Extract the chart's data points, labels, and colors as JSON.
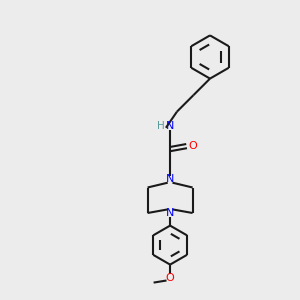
{
  "bg_color": "#ececec",
  "bond_color": "#1a1a1a",
  "N_color": "#0000ff",
  "O_color": "#ff0000",
  "H_color": "#5a9a9a",
  "line_width": 1.5,
  "figsize": [
    3.0,
    3.0
  ],
  "dpi": 100,
  "xlim": [
    0,
    10
  ],
  "ylim": [
    0,
    10
  ]
}
